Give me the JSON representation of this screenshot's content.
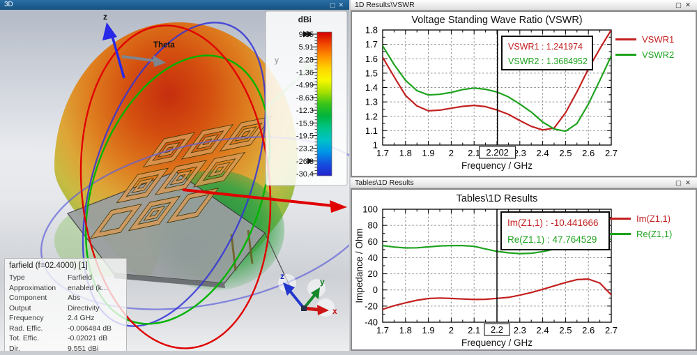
{
  "left_panel": {
    "title": "3D",
    "window_buttons": {
      "maximize_glyph": "▢",
      "close_glyph": "✕"
    },
    "labels": {
      "z_axis": "z",
      "theta": "Theta",
      "y_axis": "y",
      "triad_z": "z",
      "triad_y": "y",
      "triad_x": "x"
    },
    "colorbar": {
      "title": "dBi",
      "ticks": [
        "9.55",
        "5.91",
        "2.28",
        "-1.36",
        "-4.99",
        "-8.63",
        "-12.3",
        "-15.9",
        "-19.5",
        "-23.2",
        "-26.8",
        "-30.4"
      ],
      "gradient_stops": [
        "#d20000",
        "#f04800",
        "#ff9000",
        "#ffd200",
        "#f8f800",
        "#a8e000",
        "#38c418",
        "#00b43c",
        "#00c489",
        "#00c2c6",
        "#0096e6",
        "#1450e0",
        "#2222cc"
      ],
      "range_marker_ticks": [
        "9.55",
        "-26.8"
      ]
    },
    "farfield_info": {
      "title": "farfield (f=02.4000) [1]",
      "rows": [
        {
          "label": "Type",
          "value": "Farfield"
        },
        {
          "label": "Approximation",
          "value": "enabled (k..."
        },
        {
          "label": "Component",
          "value": "Abs"
        },
        {
          "label": "Output",
          "value": "Directivity"
        },
        {
          "label": "Frequency",
          "value": "2.4 GHz"
        },
        {
          "label": "Rad. Effic.",
          "value": "-0.006484 dB"
        },
        {
          "label": "Tot. Effic.",
          "value": "-0.02021 dB"
        },
        {
          "label": "Dir.",
          "value": "9.551 dBi"
        }
      ]
    }
  },
  "vswr_panel": {
    "tab_title": "1D Results\\VSWR",
    "window_buttons": {
      "maximize_glyph": "▢",
      "close_glyph": "✕"
    }
  },
  "tables_panel": {
    "tab_title": "Tables\\1D Results",
    "window_buttons": {
      "maximize_glyph": "▢",
      "close_glyph": "✕"
    }
  },
  "chart_data": [
    {
      "type": "line",
      "title": "Voltage Standing Wave Ratio (VSWR)",
      "xlabel": "Frequency / GHz",
      "ylabel": "",
      "xlim": [
        1.7,
        2.7
      ],
      "ylim": [
        1.0,
        1.8
      ],
      "xticks": [
        1.7,
        1.8,
        1.9,
        2.0,
        2.1,
        2.2,
        2.3,
        2.4,
        2.5,
        2.6,
        2.7
      ],
      "xtick_labels": [
        "1.7",
        "1.8",
        "1.9",
        "2",
        "2.1",
        "",
        "2.3",
        "2.4",
        "2.5",
        "2.6",
        "2.7"
      ],
      "yticks": [
        1.0,
        1.1,
        1.2,
        1.3,
        1.4,
        1.5,
        1.6,
        1.7,
        1.8
      ],
      "ytick_labels": [
        "1",
        "1.1",
        "1.2",
        "1.3",
        "1.4",
        "1.5",
        "1.6",
        "1.7",
        "1.8"
      ],
      "grid": "dashed",
      "legend_position": "right",
      "x": [
        1.7,
        1.75,
        1.8,
        1.85,
        1.9,
        1.95,
        2.0,
        2.05,
        2.1,
        2.15,
        2.2,
        2.25,
        2.3,
        2.35,
        2.4,
        2.45,
        2.5,
        2.55,
        2.6,
        2.65,
        2.7
      ],
      "series": [
        {
          "name": "VSWR1",
          "color": "#c32020",
          "values": [
            1.61,
            1.475,
            1.345,
            1.272,
            1.238,
            1.243,
            1.256,
            1.269,
            1.276,
            1.267,
            1.244,
            1.214,
            1.17,
            1.13,
            1.105,
            1.118,
            1.225,
            1.37,
            1.53,
            1.67,
            1.8
          ]
        },
        {
          "name": "VSWR2",
          "color": "#1fa31f",
          "values": [
            1.69,
            1.56,
            1.45,
            1.378,
            1.348,
            1.353,
            1.366,
            1.386,
            1.396,
            1.388,
            1.369,
            1.335,
            1.285,
            1.23,
            1.16,
            1.112,
            1.096,
            1.15,
            1.285,
            1.45,
            1.62
          ]
        }
      ],
      "marker": {
        "x": 2.202,
        "axis_label": "2.202",
        "readout": [
          {
            "text": "VSWR1 : 1.241974",
            "color": "#c32020"
          },
          {
            "text": "VSWR2 : 1.3684952",
            "color": "#1fa31f"
          }
        ]
      }
    },
    {
      "type": "line",
      "title": "Tables\\1D Results",
      "xlabel": "Frequency / GHz",
      "ylabel": "Impedance / Ohm",
      "xlim": [
        1.7,
        2.7
      ],
      "ylim": [
        -40,
        100
      ],
      "xticks": [
        1.7,
        1.8,
        1.9,
        2.0,
        2.1,
        2.2,
        2.3,
        2.4,
        2.5,
        2.6,
        2.7
      ],
      "xtick_labels": [
        "1.7",
        "1.8",
        "1.9",
        "2",
        "2.1",
        "",
        "2.3",
        "2.4",
        "2.5",
        "2.6",
        "2.7"
      ],
      "yticks": [
        -40,
        -20,
        0,
        20,
        40,
        60,
        80,
        100
      ],
      "ytick_labels": [
        "-40",
        "-20",
        "0",
        "20",
        "40",
        "60",
        "80",
        "100"
      ],
      "grid": "dashed",
      "legend_position": "right",
      "x": [
        1.7,
        1.75,
        1.8,
        1.85,
        1.9,
        1.95,
        2.0,
        2.05,
        2.1,
        2.15,
        2.2,
        2.25,
        2.3,
        2.35,
        2.4,
        2.45,
        2.5,
        2.55,
        2.6,
        2.65,
        2.7
      ],
      "series": [
        {
          "name": "Im(Z1,1)",
          "color": "#c32020",
          "values": [
            -24,
            -19.5,
            -16,
            -12.8,
            -10.6,
            -10.0,
            -10.5,
            -11.2,
            -11.8,
            -11.6,
            -10.44,
            -9.2,
            -6.5,
            -3.2,
            0.8,
            5.0,
            9.2,
            12.8,
            13.5,
            8.5,
            -6
          ]
        },
        {
          "name": "Re(Z1,1)",
          "color": "#1fa31f",
          "values": [
            55,
            53.2,
            52,
            52.2,
            53.3,
            54.5,
            55,
            55,
            54,
            50.8,
            47.76,
            46,
            45,
            45.5,
            47.5,
            50.5,
            54,
            57,
            60,
            62,
            63
          ]
        }
      ],
      "marker": {
        "x": 2.2,
        "axis_label": "2.2",
        "readout": [
          {
            "text": "Im(Z1,1) : -10.441666",
            "color": "#c32020"
          },
          {
            "text": "Re(Z1,1) : 47.764529",
            "color": "#1fa31f"
          }
        ]
      }
    }
  ]
}
